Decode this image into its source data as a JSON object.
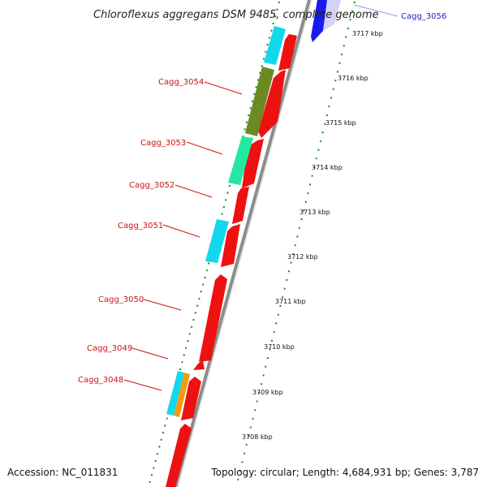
{
  "title": "Chloroflexus aggregans DSM 9485, complete genome",
  "footer": {
    "accession": "Accession: NC_011831",
    "summary": "Topology: circular; Length: 4,684,931 bp; Genes: 3,787"
  },
  "scale_labels": [
    "3717 kbp",
    "3716 kbp",
    "3715 kbp",
    "3714 kbp",
    "3713 kbp",
    "3712 kbp",
    "3711 kbp",
    "3710 kbp",
    "3709 kbp",
    "3708 kbp"
  ],
  "gene_labels": [
    "Cagg_3056",
    "Cagg_3054",
    "Cagg_3053",
    "Cagg_3052",
    "Cagg_3051",
    "Cagg_3050",
    "Cagg_3049",
    "Cagg_3048"
  ],
  "colors": {
    "gene_red": "#ee1111",
    "label_red": "#cc1111",
    "label_blue": "#2222cc",
    "gene_blue": "#1a1aee",
    "gene_cyan": "#12d8ee",
    "gene_olive": "#6b8a22",
    "gene_green": "#22e8a0",
    "gene_orange": "#f59a10",
    "backbone": "#8c8c8c",
    "dotted_green": "#1a8a1a"
  }
}
